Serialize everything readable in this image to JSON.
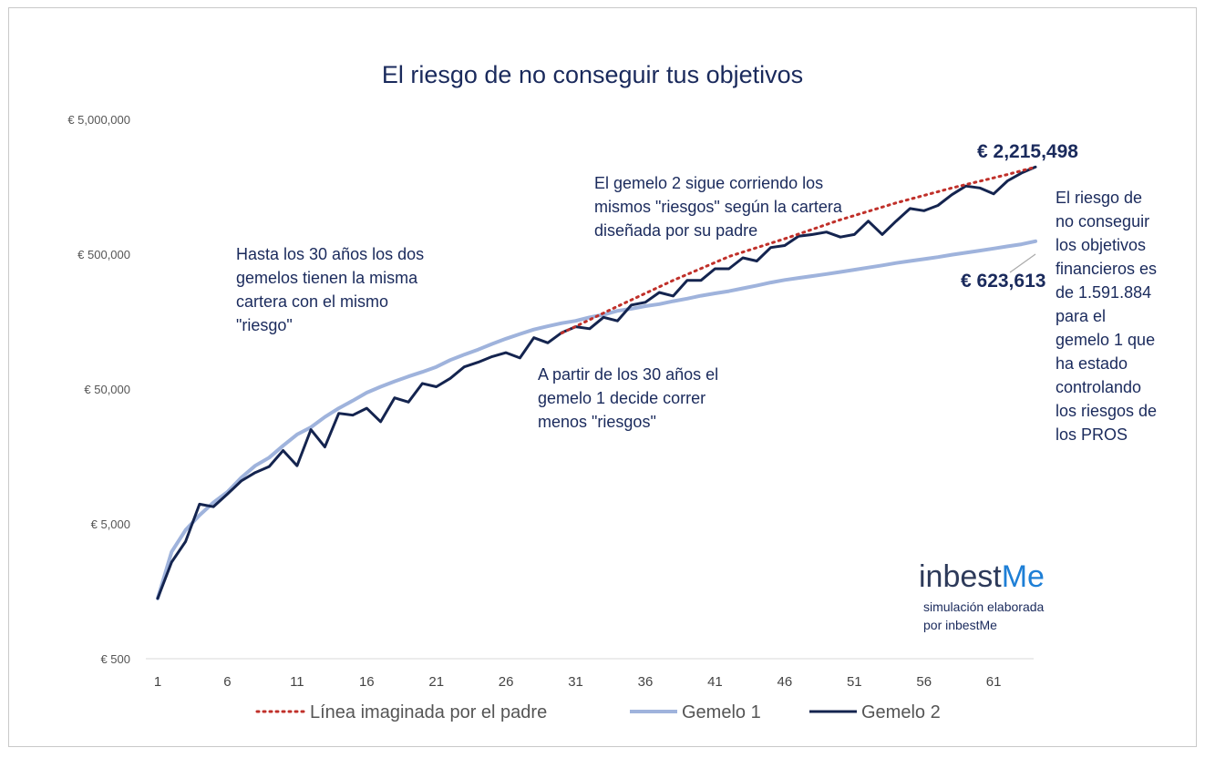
{
  "chart_data": {
    "type": "line",
    "title": "El riesgo de no conseguir tus objetivos",
    "y_scale": "log",
    "ylim": [
      500,
      5000000
    ],
    "y_ticks": [
      "€ 500",
      "€ 5,000",
      "€ 50,000",
      "€ 500,000",
      "€ 5,000,000"
    ],
    "y_tick_values": [
      500,
      5000,
      50000,
      500000,
      5000000
    ],
    "x_ticks": [
      "1",
      "6",
      "11",
      "16",
      "21",
      "26",
      "31",
      "36",
      "41",
      "46",
      "51",
      "56",
      "61"
    ],
    "x_tick_values": [
      1,
      6,
      11,
      16,
      21,
      26,
      31,
      36,
      41,
      46,
      51,
      56,
      61
    ],
    "xlim": [
      1,
      64
    ],
    "series": [
      {
        "name": "Línea imaginada por el padre",
        "color": "#c0302a",
        "style": "dotted",
        "x": [
          30,
          34,
          38,
          42,
          46,
          50,
          54,
          58,
          62,
          64
        ],
        "y": [
          130000,
          205000,
          320000,
          480000,
          650000,
          900000,
          1200000,
          1550000,
          1950000,
          2215498
        ]
      },
      {
        "name": "Gemelo 1",
        "color": "#9fb3dc",
        "style": "solid",
        "x": [
          1,
          2,
          3,
          4,
          5,
          6,
          7,
          8,
          9,
          10,
          11,
          12,
          13,
          14,
          15,
          16,
          17,
          18,
          19,
          20,
          21,
          22,
          23,
          24,
          25,
          26,
          27,
          28,
          29,
          30,
          31,
          32,
          33,
          34,
          35,
          36,
          37,
          38,
          39,
          40,
          41,
          42,
          43,
          44,
          45,
          46,
          47,
          48,
          49,
          50,
          51,
          52,
          53,
          54,
          55,
          56,
          57,
          58,
          59,
          60,
          61,
          62,
          63,
          64
        ],
        "y": [
          1400,
          3100,
          4500,
          5800,
          7200,
          8600,
          11000,
          13500,
          15500,
          19000,
          23000,
          26000,
          31000,
          36000,
          41000,
          47000,
          52000,
          57000,
          62000,
          67000,
          73000,
          82000,
          90000,
          98000,
          108000,
          118000,
          128000,
          138000,
          146000,
          154000,
          160000,
          170000,
          178000,
          190000,
          197000,
          206000,
          213000,
          224000,
          234000,
          246000,
          256000,
          266000,
          279000,
          293000,
          308000,
          322000,
          333000,
          344000,
          356000,
          369000,
          383000,
          398000,
          413000,
          430000,
          445000,
          460000,
          476000,
          495000,
          513000,
          531000,
          551000,
          572000,
          592000,
          623613
        ]
      },
      {
        "name": "Gemelo 2",
        "color": "#14244f",
        "style": "solid",
        "x": [
          1,
          2,
          3,
          4,
          5,
          6,
          7,
          8,
          9,
          10,
          11,
          12,
          13,
          14,
          15,
          16,
          17,
          18,
          19,
          20,
          21,
          22,
          23,
          24,
          25,
          26,
          27,
          28,
          29,
          30,
          31,
          32,
          33,
          34,
          35,
          36,
          37,
          38,
          39,
          40,
          41,
          42,
          43,
          44,
          45,
          46,
          47,
          48,
          49,
          50,
          51,
          52,
          53,
          54,
          55,
          56,
          57,
          58,
          59,
          60,
          61,
          62,
          63,
          64
        ],
        "y": [
          1400,
          2600,
          3700,
          7000,
          6700,
          8300,
          10400,
          12000,
          13300,
          17500,
          13500,
          25000,
          18600,
          33000,
          32000,
          36000,
          28600,
          43000,
          40000,
          55000,
          52000,
          60000,
          73000,
          79000,
          87000,
          93000,
          85000,
          120000,
          110000,
          131000,
          145000,
          140000,
          170000,
          160000,
          210000,
          220000,
          260000,
          245000,
          320000,
          320000,
          390000,
          390000,
          470000,
          445000,
          560000,
          580000,
          680000,
          700000,
          730000,
          670000,
          700000,
          880000,
          700000,
          880000,
          1090000,
          1050000,
          1150000,
          1380000,
          1600000,
          1550000,
          1400000,
          1750000,
          2000000,
          2215498
        ]
      }
    ],
    "value_labels": {
      "gemelo2_final": "€ 2,215,498",
      "gemelo1_final": "€ 623,613"
    },
    "annotations": {
      "early": [
        "Hasta los 30 años los dos",
        "gemelos tienen la misma",
        "cartera con el mismo",
        "\"riesgo\""
      ],
      "gemelo2": [
        "El gemelo 2 sigue corriendo los",
        "mismos \"riesgos\" según la cartera",
        "diseñada por su padre"
      ],
      "gemelo1": [
        "A partir de los 30 años el",
        "gemelo 1 decide correr",
        "menos \"riesgos\""
      ],
      "risk": [
        "El riesgo de",
        "no conseguir",
        "los objetivos",
        "financieros es",
        "de 1.591.884",
        "para el",
        "gemelo 1 que",
        "ha estado",
        "controlando",
        "los riesgos de",
        "los PROS"
      ]
    },
    "legend": {
      "placement": "bottom",
      "items": [
        "Línea imaginada por el padre",
        "Gemelo 1",
        "Gemelo 2"
      ]
    },
    "grid": false
  },
  "branding": {
    "logo_prefix": "inbest",
    "logo_suffix": "Me",
    "logo_color": "#1e7fd6",
    "caption": [
      "simulación elaborada",
      "por inbestMe"
    ]
  }
}
